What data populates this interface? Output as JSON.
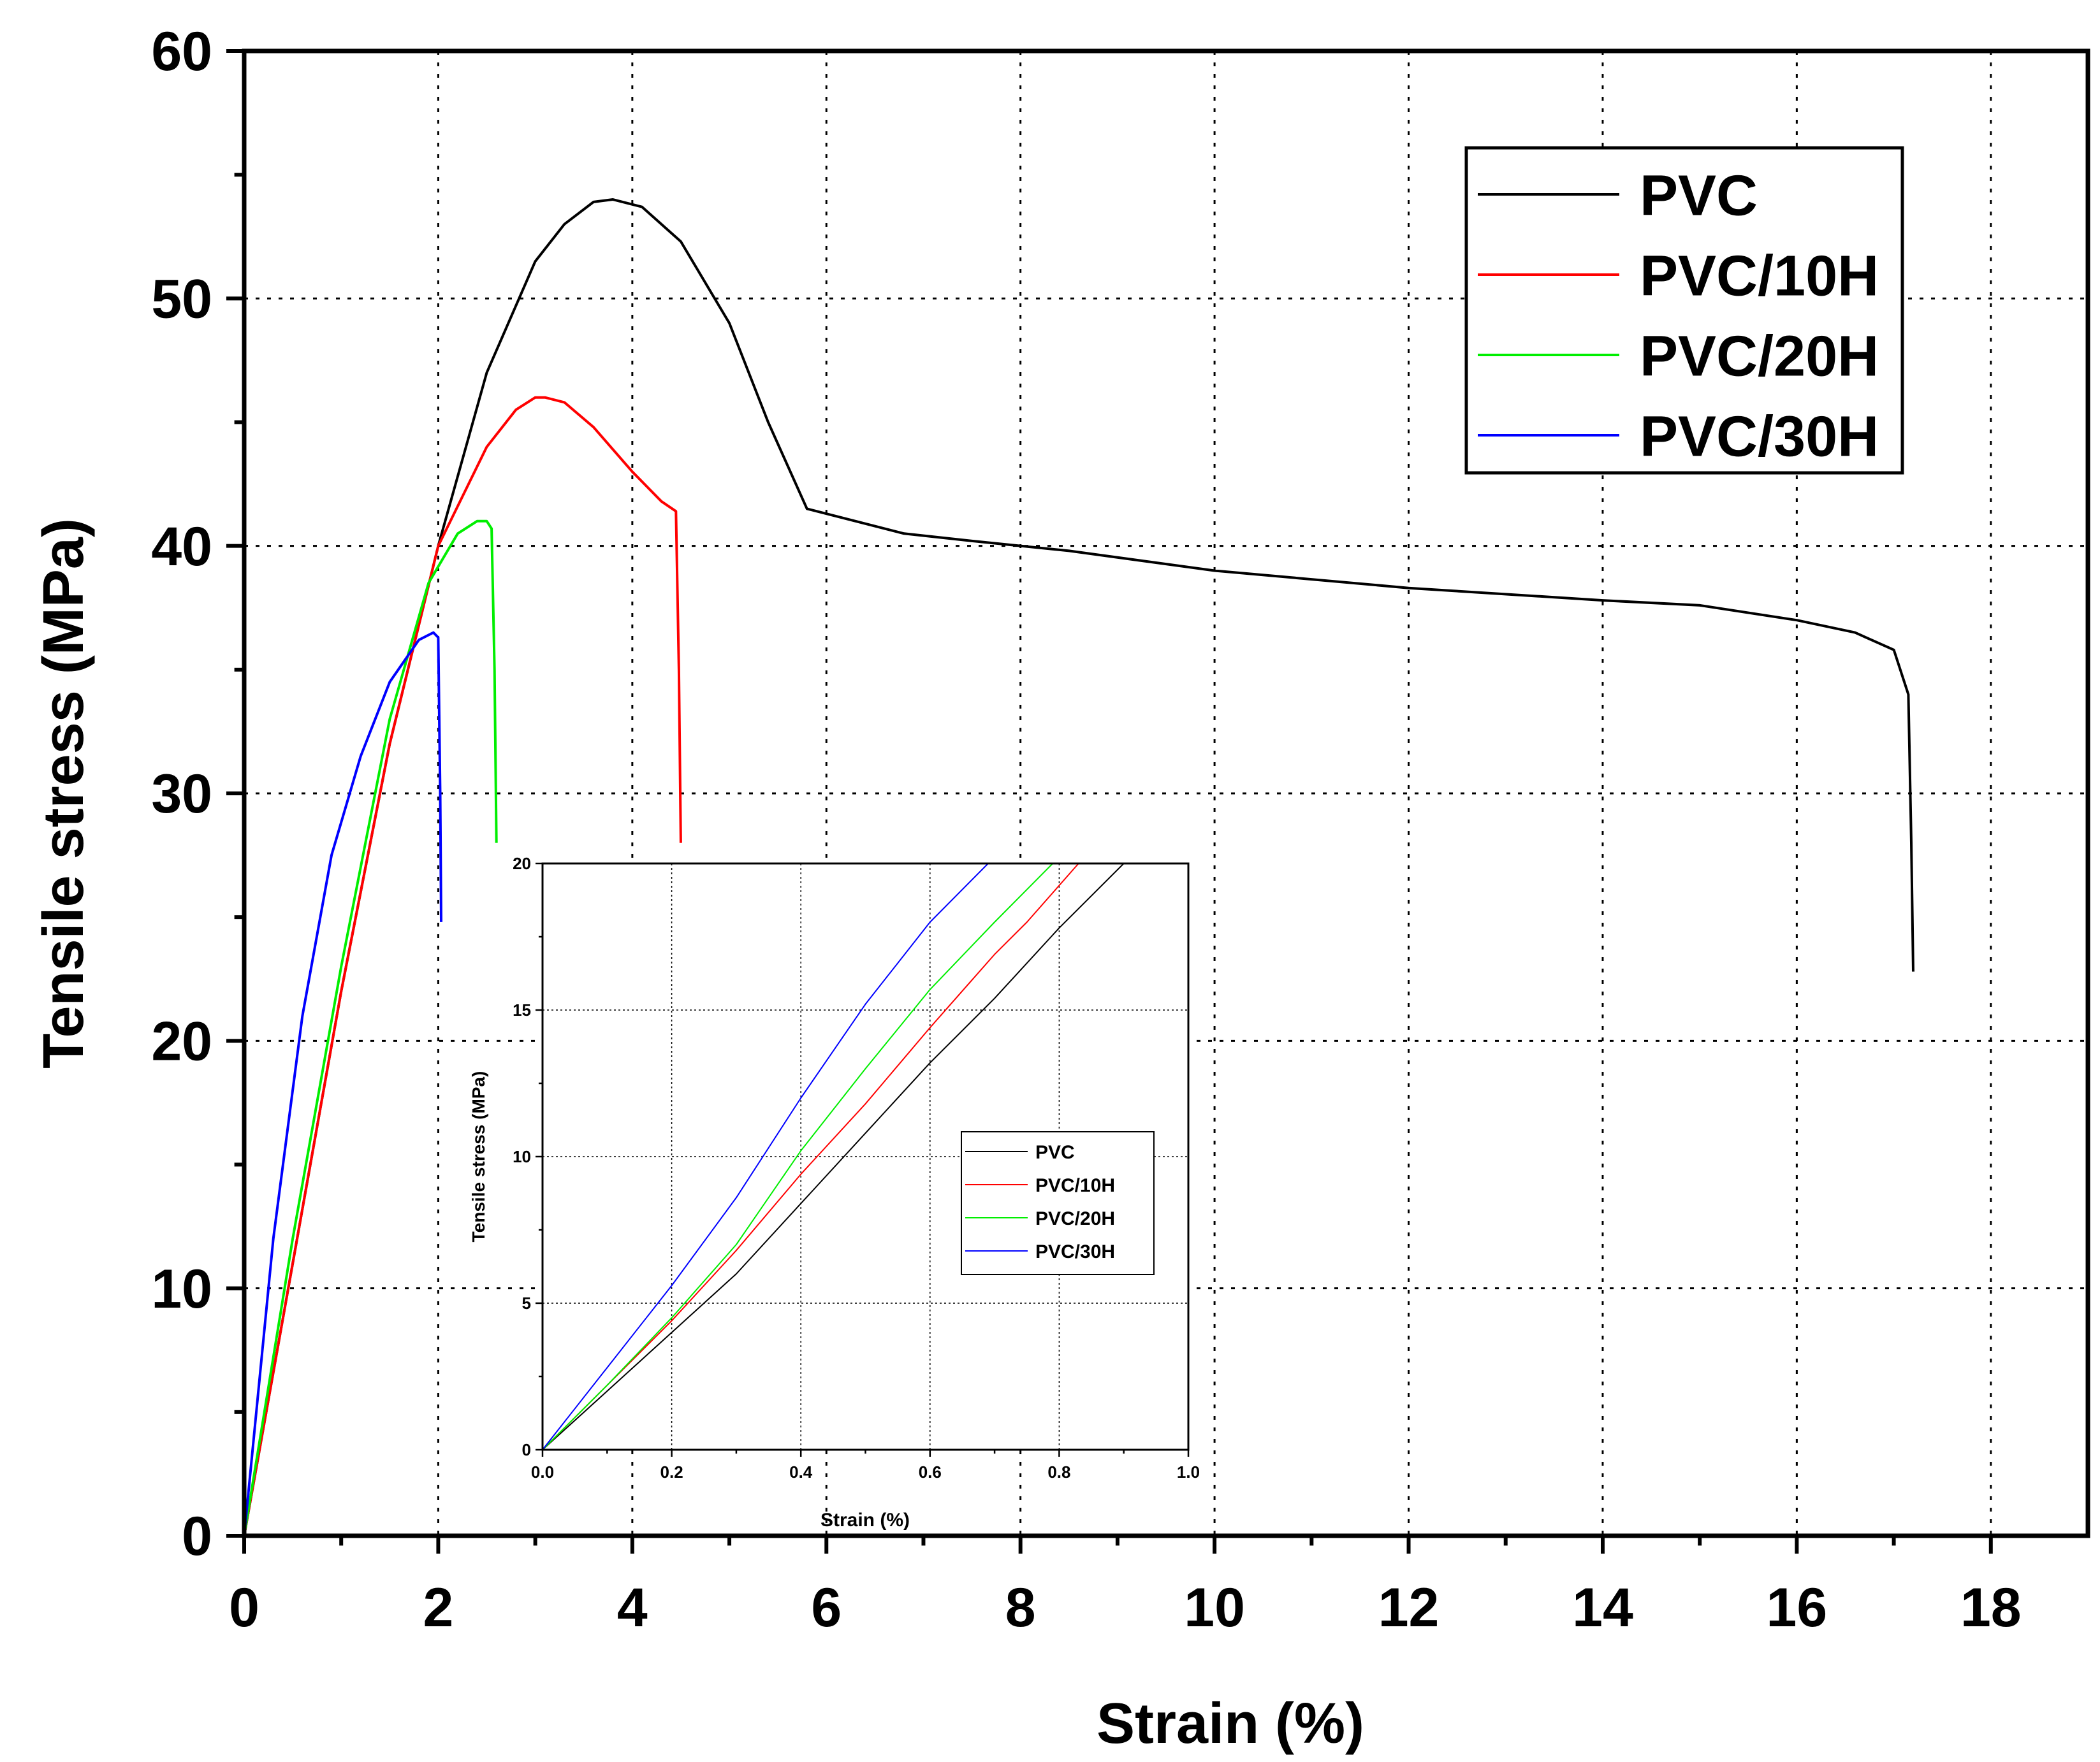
{
  "chart_data": {
    "main": {
      "type": "line",
      "xlabel": "Strain (%)",
      "ylabel": "Tensile stress (MPa)",
      "xlim": [
        0,
        19
      ],
      "ylim": [
        0,
        60
      ],
      "xticks": [
        0,
        2,
        4,
        6,
        8,
        10,
        12,
        14,
        16,
        18
      ],
      "yticks": [
        0,
        10,
        20,
        30,
        40,
        50,
        60
      ],
      "xtick_labels": [
        "0",
        "2",
        "4",
        "6",
        "8",
        "10",
        "12",
        "14",
        "16",
        "18"
      ],
      "ytick_labels": [
        "0",
        "10",
        "20",
        "30",
        "40",
        "50",
        "60"
      ],
      "grid": true,
      "legend_position": "top-right",
      "series": [
        {
          "name": "PVC",
          "color": "#000000",
          "x": [
            0,
            0.5,
            1.0,
            1.5,
            2.0,
            2.5,
            3.0,
            3.3,
            3.6,
            3.8,
            4.1,
            4.5,
            5.0,
            5.4,
            5.8,
            6.3,
            6.8,
            7.5,
            8.5,
            10.0,
            12.0,
            14.0,
            15.0,
            16.0,
            16.6,
            17.0,
            17.15,
            17.18,
            17.2
          ],
          "y": [
            0,
            11,
            22,
            32,
            40,
            47,
            51.5,
            53,
            53.9,
            54,
            53.7,
            52.3,
            49,
            45,
            41.5,
            41,
            40.5,
            40.2,
            39.8,
            39.0,
            38.3,
            37.8,
            37.6,
            37.0,
            36.5,
            35.8,
            34,
            28,
            22.8
          ]
        },
        {
          "name": "PVC/10H",
          "color": "#ff0000",
          "x": [
            0,
            0.5,
            1.0,
            1.5,
            2.0,
            2.5,
            2.8,
            3.0,
            3.1,
            3.3,
            3.6,
            4.0,
            4.3,
            4.45,
            4.48,
            4.5
          ],
          "y": [
            0,
            11,
            22,
            32,
            40,
            44,
            45.5,
            46,
            46,
            45.8,
            44.8,
            43,
            41.8,
            41.4,
            35,
            28
          ]
        },
        {
          "name": "PVC/20H",
          "color": "#00ee00",
          "x": [
            0,
            0.5,
            1.0,
            1.5,
            1.9,
            2.2,
            2.4,
            2.5,
            2.55,
            2.58,
            2.6
          ],
          "y": [
            0,
            12,
            23,
            33,
            38.5,
            40.5,
            41,
            41,
            40.7,
            35,
            28
          ]
        },
        {
          "name": "PVC/30H",
          "color": "#0000ff",
          "x": [
            0,
            0.3,
            0.6,
            0.9,
            1.2,
            1.5,
            1.8,
            1.95,
            2.0,
            2.02,
            2.03
          ],
          "y": [
            0,
            12,
            21,
            27.5,
            31.5,
            34.5,
            36.2,
            36.5,
            36.3,
            30,
            24.8
          ]
        }
      ]
    },
    "inset": {
      "type": "line",
      "xlabel": "Strain (%)",
      "ylabel": "Tensile stress (MPa)",
      "xlim": [
        0,
        1.0
      ],
      "ylim": [
        0,
        20
      ],
      "xticks": [
        0.0,
        0.2,
        0.4,
        0.6,
        0.8,
        1.0
      ],
      "yticks": [
        0,
        5,
        10,
        15,
        20
      ],
      "xtick_labels": [
        "0.0",
        "0.2",
        "0.4",
        "0.6",
        "0.8",
        "1.0"
      ],
      "ytick_labels": [
        "0",
        "5",
        "10",
        "15",
        "20"
      ],
      "grid": true,
      "legend_position": "center-right",
      "series": [
        {
          "name": "PVC",
          "color": "#000000",
          "x": [
            0,
            0.1,
            0.2,
            0.3,
            0.4,
            0.5,
            0.6,
            0.7,
            0.8,
            0.9
          ],
          "y": [
            0,
            2,
            4,
            6,
            8.4,
            10.8,
            13.2,
            15.4,
            17.8,
            20
          ]
        },
        {
          "name": "PVC/10H",
          "color": "#ff0000",
          "x": [
            0,
            0.1,
            0.2,
            0.3,
            0.4,
            0.5,
            0.6,
            0.7,
            0.75,
            0.83
          ],
          "y": [
            0,
            2.2,
            4.4,
            6.8,
            9.4,
            11.8,
            14.4,
            16.9,
            18,
            20
          ]
        },
        {
          "name": "PVC/20H",
          "color": "#00ee00",
          "x": [
            0,
            0.1,
            0.2,
            0.3,
            0.4,
            0.5,
            0.6,
            0.7,
            0.79
          ],
          "y": [
            0,
            2.2,
            4.5,
            7.0,
            10.2,
            13.0,
            15.7,
            18.0,
            20
          ]
        },
        {
          "name": "PVC/30H",
          "color": "#0000ff",
          "x": [
            0,
            0.1,
            0.2,
            0.3,
            0.4,
            0.5,
            0.6,
            0.69
          ],
          "y": [
            0,
            2.8,
            5.6,
            8.6,
            12.0,
            15.2,
            18.0,
            20
          ]
        }
      ]
    }
  }
}
